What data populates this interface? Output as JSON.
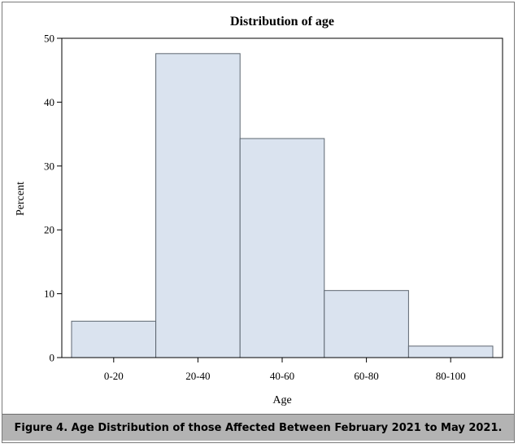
{
  "chart_data": {
    "type": "bar",
    "title": "Distribution of age",
    "xlabel": "Age",
    "ylabel": "Percent",
    "categories": [
      "0-20",
      "20-40",
      "40-60",
      "60-80",
      "80-100"
    ],
    "values": [
      5.7,
      47.6,
      34.3,
      10.5,
      1.8
    ],
    "ylim": [
      0,
      50
    ],
    "yticks": [
      0,
      10,
      20,
      30,
      40,
      50
    ],
    "grid": false,
    "bar_color": "#dae3ef",
    "bar_edge_color": "#5d6670"
  },
  "caption": "Figure 4. Age Distribution of those Affected Between February 2021 to May 2021."
}
